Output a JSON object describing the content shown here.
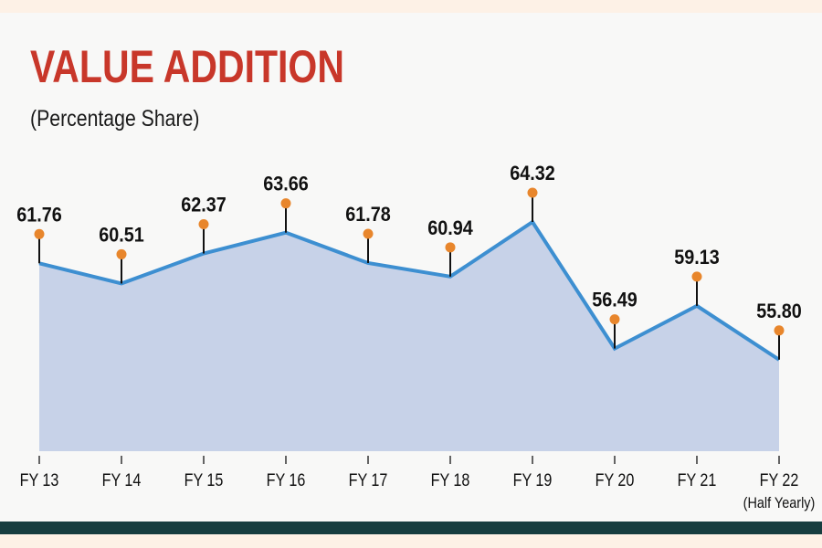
{
  "chart_data": {
    "type": "area",
    "title": "VALUE ADDITION",
    "subtitle": "(Percentage Share)",
    "categories": [
      "FY 13",
      "FY 14",
      "FY 15",
      "FY 16",
      "FY 17",
      "FY 18",
      "FY 19",
      "FY 20",
      "FY 21",
      "FY 22"
    ],
    "category_notes": {
      "FY 22": "(Half Yearly)"
    },
    "values": [
      61.76,
      60.51,
      62.37,
      63.66,
      61.78,
      60.94,
      64.32,
      56.49,
      59.13,
      55.8
    ],
    "data_labels": [
      "61.76",
      "60.51",
      "62.37",
      "63.66",
      "61.78",
      "60.94",
      "64.32",
      "56.49",
      "59.13",
      "55.80"
    ],
    "xlabel": "",
    "ylabel": "",
    "grid": false,
    "colors": {
      "line": "#3d8fd1",
      "fill": "#c7d2e8",
      "marker": "#e8862c",
      "title": "#c8372a"
    }
  }
}
